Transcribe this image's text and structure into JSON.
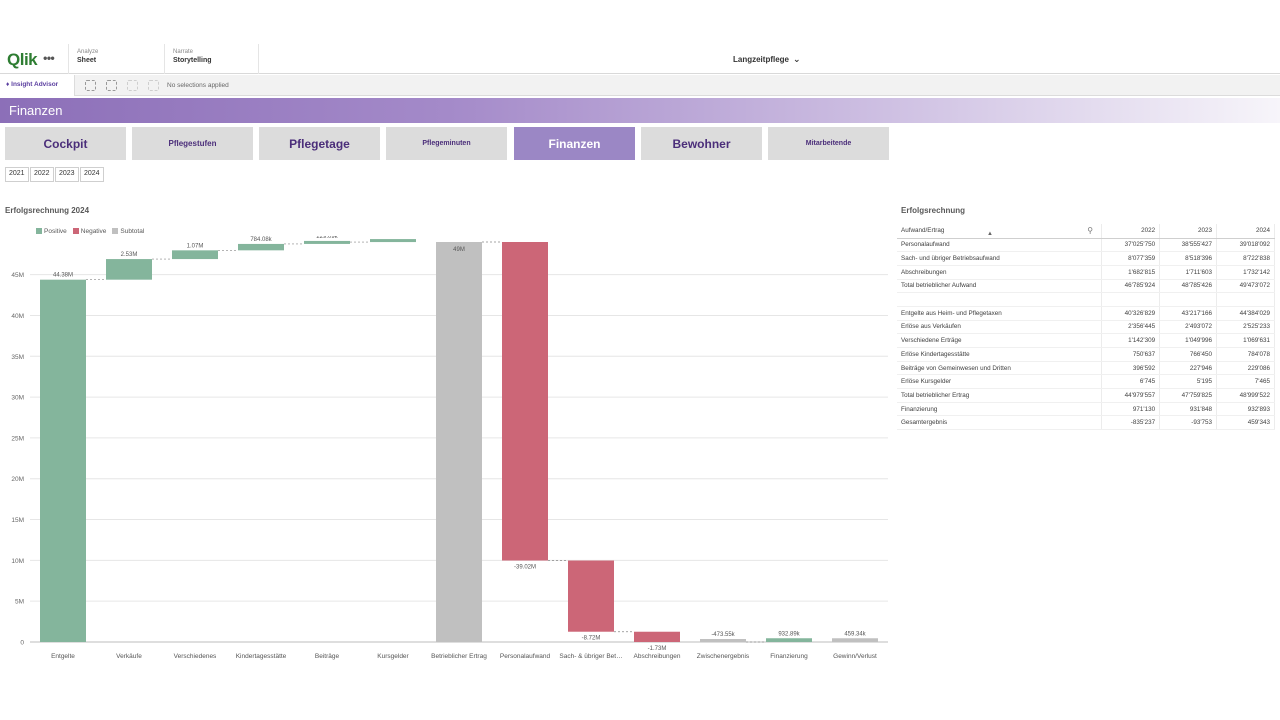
{
  "app": {
    "logo": "Qlik",
    "menu_icon": "ellipsis-icon",
    "tabs": [
      {
        "small": "Analyze",
        "big": "Sheet"
      },
      {
        "small": "Narrate",
        "big": "Storytelling"
      }
    ],
    "title": "Langzeitpflege",
    "title_chevron": "⌄"
  },
  "toolbar": {
    "insight_label": "Insight Advisor",
    "no_selections": "No selections applied"
  },
  "sheet": {
    "title": "Finanzen"
  },
  "nav": {
    "buttons": [
      {
        "label": "Cockpit"
      },
      {
        "label": "Pflegestufen"
      },
      {
        "label": "Pflegetage"
      },
      {
        "label": "Pflegeminuten"
      },
      {
        "label": "Finanzen"
      },
      {
        "label": "Bewohner"
      },
      {
        "label": "Mitarbeitende"
      }
    ],
    "active_color": "#9b87c5"
  },
  "years": [
    "2021",
    "2022",
    "2023",
    "2024"
  ],
  "chart_data": {
    "type": "bar",
    "subtype": "waterfall",
    "title": "Erfolgsrechnung 2024",
    "legend": [
      "Positive",
      "Negative",
      "Subtotal"
    ],
    "colors": {
      "Positive": "#84b59c",
      "Negative": "#cc6677",
      "Subtotal": "#c0c0c0"
    },
    "ylim": [
      0,
      49000000
    ],
    "yticks": [
      "0",
      "5M",
      "10M",
      "15M",
      "20M",
      "25M",
      "30M",
      "35M",
      "40M",
      "45M"
    ],
    "bars": [
      {
        "category": "Entgelte",
        "kind": "Positive",
        "start": 0,
        "end": 44384029,
        "label": "44.38M"
      },
      {
        "category": "Verkäufe",
        "kind": "Positive",
        "start": 44384029,
        "end": 46909262,
        "label": "2.53M"
      },
      {
        "category": "Verschiedenes",
        "kind": "Positive",
        "start": 46909262,
        "end": 47978893,
        "label": "1.07M"
      },
      {
        "category": "Kindertagesstätte",
        "kind": "Positive",
        "start": 47978893,
        "end": 48762971,
        "label": "784.08k"
      },
      {
        "category": "Beiträge",
        "kind": "Positive",
        "start": 48762971,
        "end": 48992057,
        "label": "229.09k"
      },
      {
        "category": "Kursgelder",
        "kind": "Positive",
        "start": 48992057,
        "end": 48999522,
        "label": "7.47k"
      },
      {
        "category": "Betrieblicher Ertrag",
        "kind": "Subtotal",
        "start": 0,
        "end": 48999522,
        "label": "49M"
      },
      {
        "category": "Personalaufwand",
        "kind": "Negative",
        "start": 48999522,
        "end": 9981430,
        "label": "-39.02M"
      },
      {
        "category": "Sach- & übriger Bet…",
        "kind": "Negative",
        "start": 9981430,
        "end": 1258592,
        "label": "-8.72M"
      },
      {
        "category": "Abschreibungen",
        "kind": "Negative",
        "start": 1258592,
        "end": -473550,
        "label": "-1.73M"
      },
      {
        "category": "Zwischenergebnis",
        "kind": "Subtotal",
        "start": 0,
        "end": -473550,
        "label": "-473.55k"
      },
      {
        "category": "Finanzierung",
        "kind": "Positive",
        "start": -473550,
        "end": 459343,
        "label": "932.89k"
      },
      {
        "category": "Gewinn/Verlust",
        "kind": "Subtotal",
        "start": 0,
        "end": 459343,
        "label": "459.34k"
      }
    ]
  },
  "table": {
    "title": "Erfolgsrechnung",
    "columns": [
      "Aufwand/Ertrag",
      "2022",
      "2023",
      "2024"
    ],
    "rows": [
      [
        "Personalaufwand",
        "37'025'750",
        "38'555'427",
        "39'018'092"
      ],
      [
        "Sach- und übriger Betriebsaufwand",
        "8'077'359",
        "8'518'396",
        "8'722'838"
      ],
      [
        "Abschreibungen",
        "1'682'815",
        "1'711'603",
        "1'732'142"
      ],
      [
        "Total betrieblicher Aufwand",
        "46'785'924",
        "48'785'426",
        "49'473'072"
      ],
      [
        "",
        "",
        "",
        ""
      ],
      [
        "Entgelte aus Heim- und Pflegetaxen",
        "40'326'829",
        "43'217'166",
        "44'384'029"
      ],
      [
        "Erlöse aus Verkäufen",
        "2'356'445",
        "2'493'072",
        "2'525'233"
      ],
      [
        "Verschiedene Erträge",
        "1'142'309",
        "1'049'996",
        "1'069'631"
      ],
      [
        "Erlöse Kindertagesstätte",
        "750'637",
        "766'450",
        "784'078"
      ],
      [
        "Beiträge von Gemeinwesen und Dritten",
        "396'592",
        "227'946",
        "229'086"
      ],
      [
        "Erlöse Kursgelder",
        "6'745",
        "5'195",
        "7'465"
      ],
      [
        "Total betrieblicher Ertrag",
        "44'979'557",
        "47'759'825",
        "48'999'522"
      ],
      [
        "Finanzierung",
        "971'130",
        "931'848",
        "932'893"
      ],
      [
        "Gesamtergebnis",
        "-835'237",
        "-93'753",
        "459'343"
      ]
    ]
  }
}
